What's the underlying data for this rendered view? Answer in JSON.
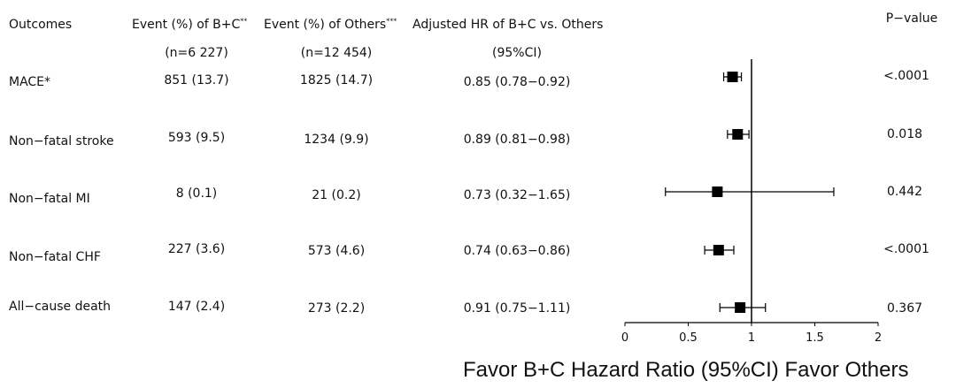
{
  "headers": {
    "outcomes": "Outcomes",
    "event_bc": "Event (%) of B+C",
    "event_bc_sup": "**",
    "event_others": "Event (%) of Others",
    "event_others_sup": "***",
    "hr": "Adjusted HR of B+C vs. Others",
    "pvalue": "P−value",
    "n_bc": "(n=6 227)",
    "n_others": "(n=12 454)",
    "ci": "(95%CI)"
  },
  "rows": [
    {
      "outcome": "MACE*",
      "event_bc": "851 (13.7)",
      "event_others": "1825 (14.7)",
      "hr_text": "0.85 (0.78−0.92)",
      "p": "<.0001"
    },
    {
      "outcome": "Non−fatal stroke",
      "event_bc": "593 (9.5)",
      "event_others": "1234 (9.9)",
      "hr_text": "0.89 (0.81−0.98)",
      "p": "0.018"
    },
    {
      "outcome": "Non−fatal MI",
      "event_bc": "8 (0.1)",
      "event_others": "21 (0.2)",
      "hr_text": "0.73 (0.32−1.65)",
      "p": "0.442"
    },
    {
      "outcome": "Non−fatal CHF",
      "event_bc": "227 (3.6)",
      "event_others": "573 (4.6)",
      "hr_text": "0.74 (0.63−0.86)",
      "p": "<.0001"
    },
    {
      "outcome": "All−cause death",
      "event_bc": "147 (2.4)",
      "event_others": "273 (2.2)",
      "hr_text": "0.91 (0.75−1.11)",
      "p": "0.367"
    }
  ],
  "axis_title": "Favor B+C Hazard Ratio (95%CI) Favor Others",
  "chart_data": {
    "type": "scatter",
    "subtype": "forest",
    "title": "",
    "xlabel": "Favor B+C Hazard Ratio (95%CI) Favor Others",
    "xlim": [
      0,
      2
    ],
    "xticks": [
      0,
      0.5,
      1,
      1.5,
      2
    ],
    "reference_line": 1,
    "categories": [
      "MACE*",
      "Non−fatal stroke",
      "Non−fatal MI",
      "Non−fatal CHF",
      "All−cause death"
    ],
    "estimate": [
      0.85,
      0.89,
      0.73,
      0.74,
      0.91
    ],
    "lower": [
      0.78,
      0.81,
      0.32,
      0.63,
      0.75
    ],
    "upper": [
      0.92,
      0.98,
      1.65,
      0.86,
      1.11
    ],
    "p_values": [
      "<.0001",
      "0.018",
      "0.442",
      "<.0001",
      "0.367"
    ],
    "marker_color": "#000000"
  }
}
